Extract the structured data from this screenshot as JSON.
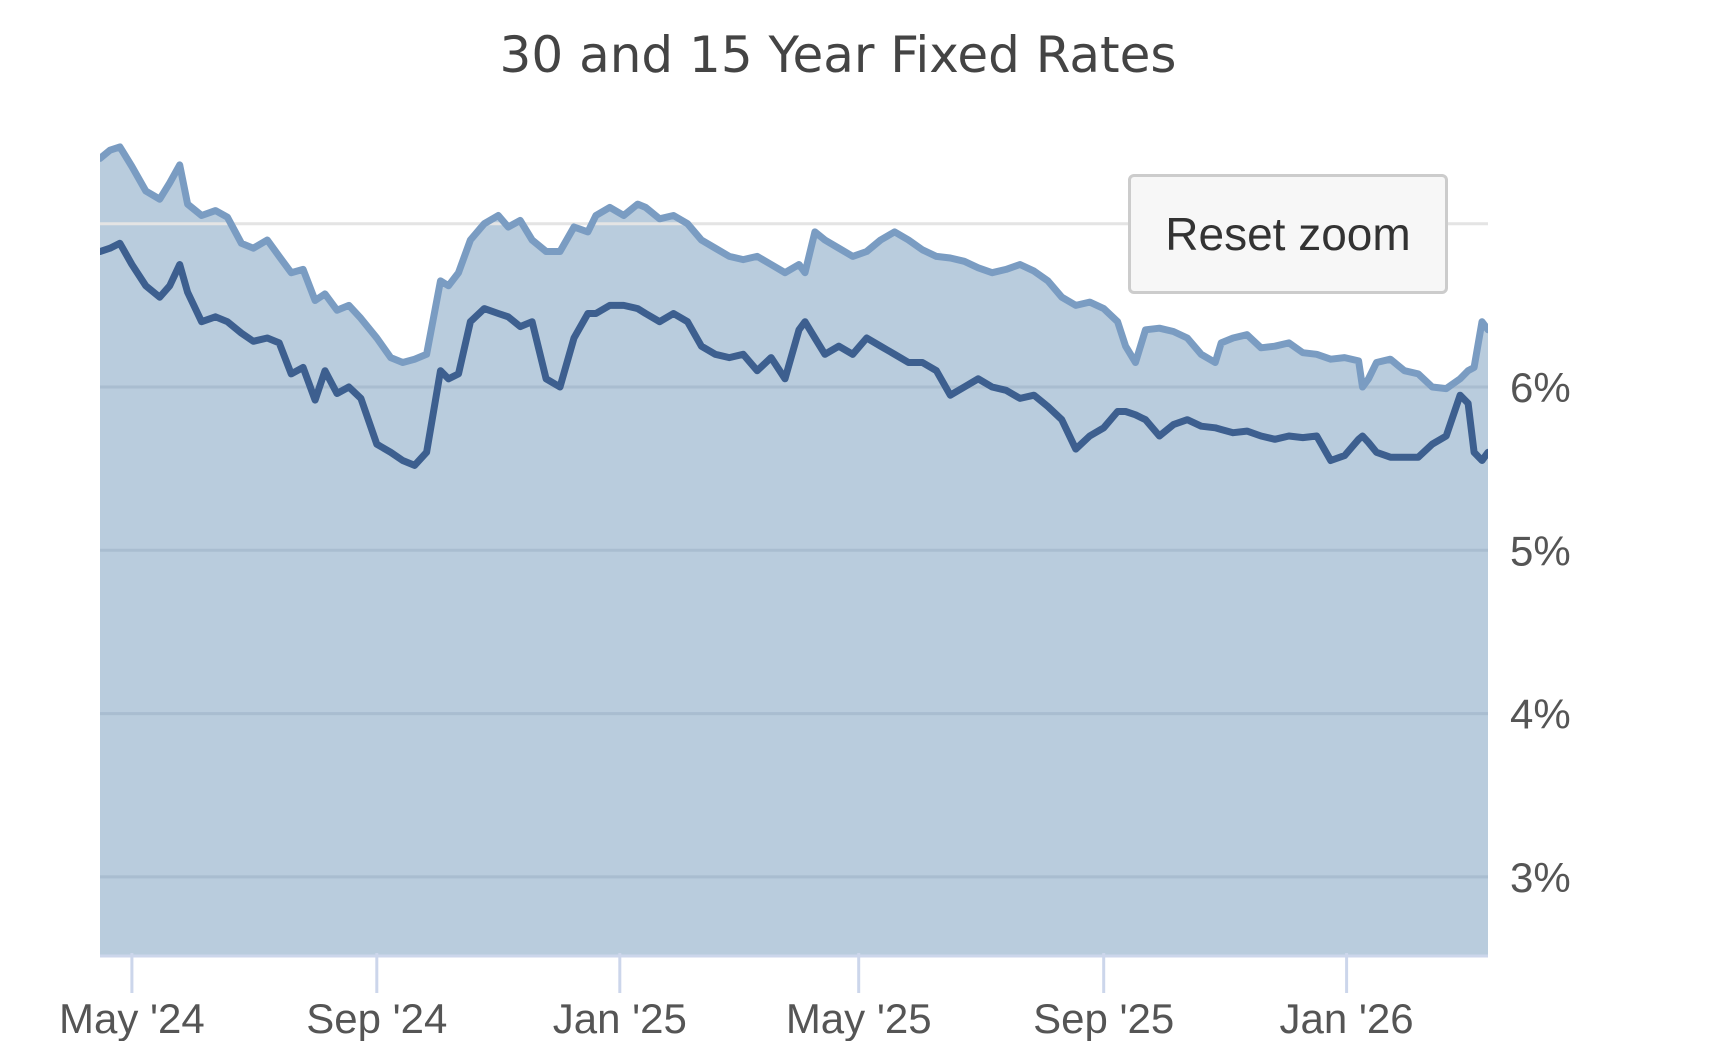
{
  "chart_data": {
    "type": "area",
    "title": "30 and 15 Year Fixed Rates",
    "xlabel": "",
    "ylabel": "",
    "x_tick_labels": [
      "May '24",
      "Sep '24",
      "Jan '25",
      "May '25",
      "Sep '25",
      "Jan '26"
    ],
    "y_tick_labels": [
      "3%",
      "4%",
      "5%",
      "6%"
    ],
    "y_ticks": [
      3,
      4,
      5,
      6
    ],
    "ylim": [
      2.5,
      7.5
    ],
    "xlim": [
      "2024-04-15",
      "2026-03-13"
    ],
    "grid": true,
    "legend": "none",
    "series": [
      {
        "color": "#7a9cc2",
        "x": [
          "2024-04-15",
          "2024-04-20",
          "2024-04-25",
          "2024-05-01",
          "2024-05-08",
          "2024-05-15",
          "2024-05-20",
          "2024-05-25",
          "2024-05-29",
          "2024-06-05",
          "2024-06-12",
          "2024-06-18",
          "2024-06-25",
          "2024-07-01",
          "2024-07-08",
          "2024-07-14",
          "2024-07-20",
          "2024-07-26",
          "2024-08-01",
          "2024-08-06",
          "2024-08-12",
          "2024-08-18",
          "2024-08-24",
          "2024-09-01",
          "2024-09-08",
          "2024-09-14",
          "2024-09-20",
          "2024-09-26",
          "2024-10-03",
          "2024-10-07",
          "2024-10-12",
          "2024-10-18",
          "2024-10-25",
          "2024-11-01",
          "2024-11-06",
          "2024-11-12",
          "2024-11-18",
          "2024-11-25",
          "2024-12-02",
          "2024-12-09",
          "2024-12-16",
          "2024-12-20",
          "2024-12-27",
          "2025-01-03",
          "2025-01-10",
          "2025-01-14",
          "2025-01-21",
          "2025-01-28",
          "2025-02-04",
          "2025-02-11",
          "2025-02-18",
          "2025-02-25",
          "2025-03-04",
          "2025-03-11",
          "2025-03-18",
          "2025-03-25",
          "2025-04-01",
          "2025-04-04",
          "2025-04-09",
          "2025-04-14",
          "2025-04-21",
          "2025-04-28",
          "2025-05-05",
          "2025-05-12",
          "2025-05-19",
          "2025-05-26",
          "2025-06-02",
          "2025-06-09",
          "2025-06-16",
          "2025-06-23",
          "2025-06-30",
          "2025-07-07",
          "2025-07-14",
          "2025-07-21",
          "2025-07-28",
          "2025-08-04",
          "2025-08-11",
          "2025-08-18",
          "2025-08-25",
          "2025-09-01",
          "2025-09-08",
          "2025-09-12",
          "2025-09-17",
          "2025-09-22",
          "2025-09-29",
          "2025-10-06",
          "2025-10-13",
          "2025-10-20",
          "2025-10-27",
          "2025-10-30",
          "2025-11-05",
          "2025-11-12",
          "2025-11-19",
          "2025-11-26",
          "2025-12-03",
          "2025-12-10",
          "2025-12-17",
          "2025-12-24",
          "2025-12-31",
          "2026-01-07",
          "2026-01-09",
          "2026-01-12",
          "2026-01-16",
          "2026-01-23",
          "2026-01-30",
          "2026-02-06",
          "2026-02-13",
          "2026-02-20",
          "2026-02-27",
          "2026-03-03",
          "2026-03-06",
          "2026-03-10",
          "2026-03-13"
        ],
        "values": [
          7.4,
          7.45,
          7.47,
          7.35,
          7.2,
          7.15,
          7.25,
          7.36,
          7.12,
          7.05,
          7.08,
          7.04,
          6.88,
          6.85,
          6.9,
          6.8,
          6.7,
          6.72,
          6.53,
          6.57,
          6.47,
          6.5,
          6.42,
          6.3,
          6.18,
          6.15,
          6.17,
          6.2,
          6.65,
          6.62,
          6.7,
          6.9,
          7.0,
          7.05,
          6.98,
          7.02,
          6.9,
          6.83,
          6.83,
          6.98,
          6.95,
          7.05,
          7.1,
          7.05,
          7.12,
          7.1,
          7.03,
          7.05,
          7.0,
          6.9,
          6.85,
          6.8,
          6.78,
          6.8,
          6.75,
          6.7,
          6.75,
          6.7,
          6.95,
          6.9,
          6.85,
          6.8,
          6.83,
          6.9,
          6.95,
          6.9,
          6.84,
          6.8,
          6.79,
          6.77,
          6.73,
          6.7,
          6.72,
          6.75,
          6.71,
          6.65,
          6.55,
          6.5,
          6.52,
          6.48,
          6.4,
          6.25,
          6.15,
          6.35,
          6.36,
          6.34,
          6.3,
          6.2,
          6.15,
          6.27,
          6.3,
          6.32,
          6.24,
          6.25,
          6.27,
          6.21,
          6.2,
          6.17,
          6.18,
          6.16,
          6.0,
          6.05,
          6.15,
          6.17,
          6.1,
          6.08,
          6.0,
          5.99,
          6.05,
          6.1,
          6.12,
          6.4,
          6.35
        ]
      },
      {
        "color": "#3d5f8f",
        "x": [
          "2024-04-15",
          "2024-04-20",
          "2024-04-25",
          "2024-05-01",
          "2024-05-08",
          "2024-05-15",
          "2024-05-20",
          "2024-05-25",
          "2024-05-29",
          "2024-06-05",
          "2024-06-12",
          "2024-06-18",
          "2024-06-25",
          "2024-07-01",
          "2024-07-08",
          "2024-07-14",
          "2024-07-20",
          "2024-07-26",
          "2024-08-01",
          "2024-08-06",
          "2024-08-12",
          "2024-08-18",
          "2024-08-24",
          "2024-09-01",
          "2024-09-08",
          "2024-09-14",
          "2024-09-20",
          "2024-09-26",
          "2024-10-03",
          "2024-10-07",
          "2024-10-12",
          "2024-10-18",
          "2024-10-25",
          "2024-11-01",
          "2024-11-06",
          "2024-11-12",
          "2024-11-18",
          "2024-11-25",
          "2024-12-02",
          "2024-12-09",
          "2024-12-16",
          "2024-12-20",
          "2024-12-27",
          "2025-01-03",
          "2025-01-10",
          "2025-01-14",
          "2025-01-21",
          "2025-01-28",
          "2025-02-04",
          "2025-02-11",
          "2025-02-18",
          "2025-02-25",
          "2025-03-04",
          "2025-03-11",
          "2025-03-18",
          "2025-03-25",
          "2025-04-01",
          "2025-04-04",
          "2025-04-09",
          "2025-04-14",
          "2025-04-21",
          "2025-04-28",
          "2025-05-05",
          "2025-05-12",
          "2025-05-19",
          "2025-05-26",
          "2025-06-02",
          "2025-06-09",
          "2025-06-16",
          "2025-06-23",
          "2025-06-30",
          "2025-07-07",
          "2025-07-14",
          "2025-07-21",
          "2025-07-28",
          "2025-08-04",
          "2025-08-11",
          "2025-08-18",
          "2025-08-25",
          "2025-09-01",
          "2025-09-08",
          "2025-09-12",
          "2025-09-17",
          "2025-09-22",
          "2025-09-29",
          "2025-10-06",
          "2025-10-13",
          "2025-10-20",
          "2025-10-27",
          "2025-10-30",
          "2025-11-05",
          "2025-11-12",
          "2025-11-19",
          "2025-11-26",
          "2025-12-03",
          "2025-12-10",
          "2025-12-17",
          "2025-12-24",
          "2025-12-31",
          "2026-01-07",
          "2026-01-09",
          "2026-01-12",
          "2026-01-16",
          "2026-01-23",
          "2026-01-30",
          "2026-02-06",
          "2026-02-13",
          "2026-02-20",
          "2026-02-27",
          "2026-03-03",
          "2026-03-06",
          "2026-03-10",
          "2026-03-13"
        ],
        "values": [
          6.83,
          6.85,
          6.88,
          6.75,
          6.62,
          6.55,
          6.62,
          6.75,
          6.58,
          6.4,
          6.43,
          6.4,
          6.33,
          6.28,
          6.3,
          6.27,
          6.08,
          6.12,
          5.92,
          6.1,
          5.96,
          6.0,
          5.93,
          5.65,
          5.6,
          5.55,
          5.52,
          5.6,
          6.1,
          6.05,
          6.08,
          6.4,
          6.48,
          6.45,
          6.43,
          6.37,
          6.4,
          6.05,
          6.0,
          6.3,
          6.45,
          6.45,
          6.5,
          6.5,
          6.48,
          6.45,
          6.4,
          6.45,
          6.4,
          6.25,
          6.2,
          6.18,
          6.2,
          6.1,
          6.18,
          6.05,
          6.35,
          6.4,
          6.3,
          6.2,
          6.25,
          6.2,
          6.3,
          6.25,
          6.2,
          6.15,
          6.15,
          6.1,
          5.95,
          6.0,
          6.05,
          6.0,
          5.98,
          5.93,
          5.95,
          5.88,
          5.8,
          5.62,
          5.7,
          5.75,
          5.85,
          5.85,
          5.83,
          5.8,
          5.7,
          5.77,
          5.8,
          5.76,
          5.75,
          5.74,
          5.72,
          5.73,
          5.7,
          5.68,
          5.7,
          5.69,
          5.7,
          5.55,
          5.58,
          5.68,
          5.7,
          5.66,
          5.6,
          5.57,
          5.57,
          5.57,
          5.65,
          5.7,
          5.95,
          5.9,
          5.6,
          5.55,
          5.6
        ]
      }
    ]
  },
  "controls": {
    "reset_zoom_label": "Reset zoom"
  }
}
